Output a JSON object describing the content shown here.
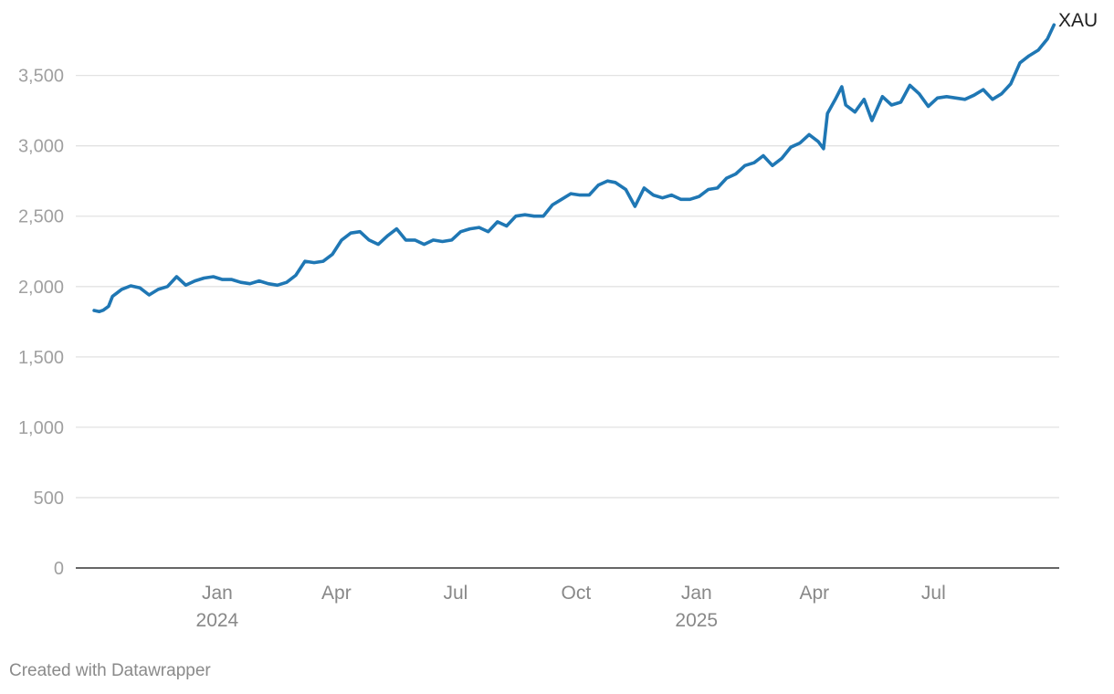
{
  "chart_data": {
    "type": "line",
    "x_axis": "date",
    "ylim": [
      0,
      3900
    ],
    "y_ticks": [
      0,
      500,
      1000,
      1500,
      2000,
      2500,
      3000,
      3500
    ],
    "y_tick_labels": [
      "0",
      "500",
      "1,000",
      "1,500",
      "2,000",
      "2,500",
      "3,000",
      "3,500"
    ],
    "x_range": [
      "2023-09-15",
      "2025-10-05"
    ],
    "x_ticks": [
      {
        "date": "2024-01-01",
        "label": "Jan",
        "sublabel": "2024"
      },
      {
        "date": "2024-04-01",
        "label": "Apr",
        "sublabel": ""
      },
      {
        "date": "2024-07-01",
        "label": "Jul",
        "sublabel": ""
      },
      {
        "date": "2024-10-01",
        "label": "Oct",
        "sublabel": ""
      },
      {
        "date": "2025-01-01",
        "label": "Jan",
        "sublabel": "2025"
      },
      {
        "date": "2025-04-01",
        "label": "Apr",
        "sublabel": ""
      },
      {
        "date": "2025-07-01",
        "label": "Jul",
        "sublabel": ""
      }
    ],
    "grid": true,
    "series": [
      {
        "name": "XAU",
        "color": "#1f77b4",
        "x": [
          "2023-09-29",
          "2023-10-03",
          "2023-10-06",
          "2023-10-10",
          "2023-10-13",
          "2023-10-20",
          "2023-10-27",
          "2023-11-03",
          "2023-11-10",
          "2023-11-17",
          "2023-11-24",
          "2023-12-01",
          "2023-12-08",
          "2023-12-15",
          "2023-12-22",
          "2023-12-29",
          "2024-01-05",
          "2024-01-12",
          "2024-01-19",
          "2024-01-26",
          "2024-02-02",
          "2024-02-09",
          "2024-02-16",
          "2024-02-23",
          "2024-03-01",
          "2024-03-08",
          "2024-03-15",
          "2024-03-22",
          "2024-03-29",
          "2024-04-05",
          "2024-04-12",
          "2024-04-19",
          "2024-04-26",
          "2024-05-03",
          "2024-05-10",
          "2024-05-17",
          "2024-05-24",
          "2024-05-31",
          "2024-06-07",
          "2024-06-14",
          "2024-06-21",
          "2024-06-28",
          "2024-07-05",
          "2024-07-12",
          "2024-07-19",
          "2024-07-26",
          "2024-08-02",
          "2024-08-09",
          "2024-08-16",
          "2024-08-23",
          "2024-08-30",
          "2024-09-06",
          "2024-09-13",
          "2024-09-20",
          "2024-09-27",
          "2024-10-04",
          "2024-10-11",
          "2024-10-18",
          "2024-10-25",
          "2024-10-31",
          "2024-11-08",
          "2024-11-15",
          "2024-11-22",
          "2024-11-29",
          "2024-12-06",
          "2024-12-13",
          "2024-12-20",
          "2024-12-27",
          "2025-01-03",
          "2025-01-10",
          "2025-01-17",
          "2025-01-24",
          "2025-01-31",
          "2025-02-07",
          "2025-02-14",
          "2025-02-21",
          "2025-02-28",
          "2025-03-07",
          "2025-03-14",
          "2025-03-21",
          "2025-03-28",
          "2025-04-04",
          "2025-04-08",
          "2025-04-11",
          "2025-04-17",
          "2025-04-22",
          "2025-04-25",
          "2025-05-02",
          "2025-05-09",
          "2025-05-15",
          "2025-05-23",
          "2025-05-30",
          "2025-06-06",
          "2025-06-13",
          "2025-06-20",
          "2025-06-27",
          "2025-07-04",
          "2025-07-11",
          "2025-07-18",
          "2025-07-25",
          "2025-08-01",
          "2025-08-08",
          "2025-08-15",
          "2025-08-22",
          "2025-08-29",
          "2025-09-05",
          "2025-09-12",
          "2025-09-19",
          "2025-09-26",
          "2025-10-01"
        ],
        "values": [
          1830,
          1822,
          1832,
          1860,
          1930,
          1980,
          2005,
          1990,
          1940,
          1980,
          2000,
          2070,
          2010,
          2040,
          2060,
          2070,
          2050,
          2050,
          2030,
          2020,
          2040,
          2020,
          2010,
          2030,
          2080,
          2180,
          2170,
          2180,
          2230,
          2330,
          2380,
          2390,
          2330,
          2300,
          2360,
          2410,
          2330,
          2330,
          2300,
          2330,
          2320,
          2330,
          2390,
          2410,
          2420,
          2390,
          2460,
          2430,
          2500,
          2510,
          2500,
          2500,
          2580,
          2620,
          2660,
          2650,
          2650,
          2720,
          2750,
          2740,
          2690,
          2570,
          2700,
          2650,
          2630,
          2650,
          2620,
          2620,
          2640,
          2690,
          2700,
          2770,
          2800,
          2860,
          2880,
          2930,
          2860,
          2910,
          2990,
          3020,
          3080,
          3030,
          2980,
          3230,
          3330,
          3420,
          3290,
          3240,
          3330,
          3180,
          3350,
          3290,
          3310,
          3430,
          3370,
          3280,
          3340,
          3350,
          3340,
          3330,
          3360,
          3400,
          3330,
          3370,
          3440,
          3590,
          3640,
          3680,
          3760,
          3860
        ]
      }
    ]
  },
  "footer": {
    "credit": "Created with Datawrapper"
  }
}
